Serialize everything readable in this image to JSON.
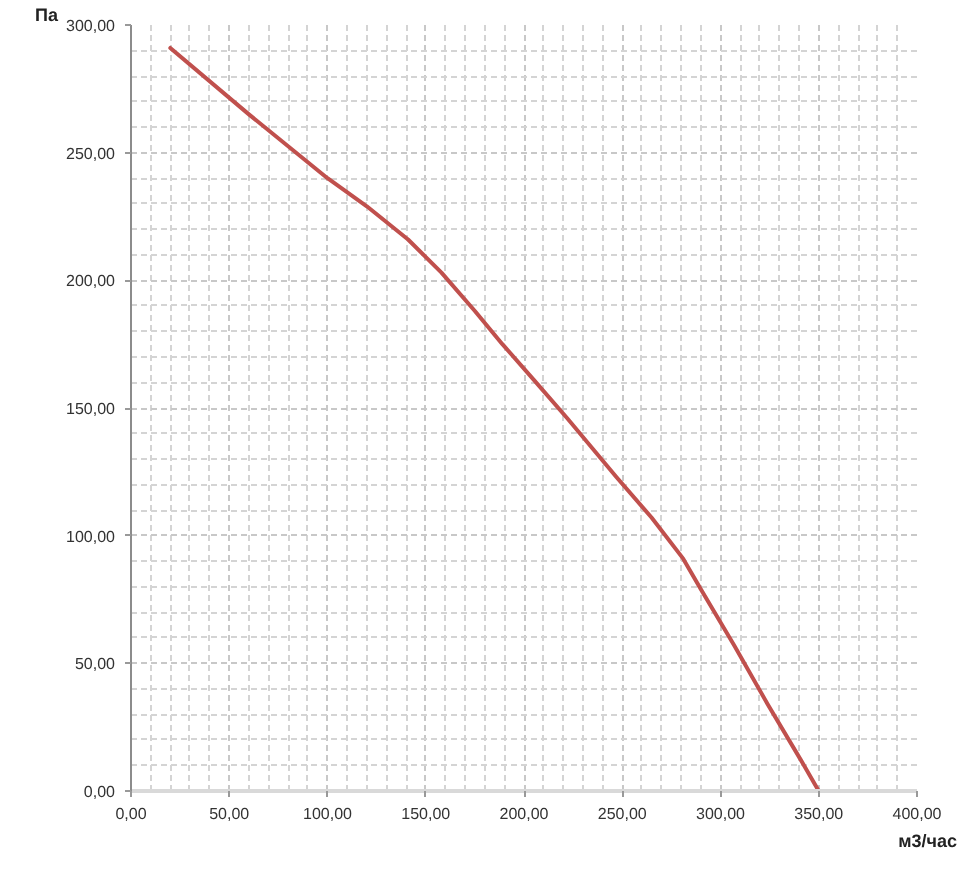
{
  "chart_data": {
    "type": "line",
    "xlabel": "м3/час",
    "ylabel": "Па",
    "x": [
      20,
      60,
      100,
      120,
      141,
      158,
      175,
      189,
      205,
      222,
      247,
      265,
      281,
      290,
      307,
      324,
      341,
      350
    ],
    "series": [
      {
        "color": "#c0504d",
        "values": [
          291,
          265,
          240,
          229,
          216,
          203,
          188,
          175,
          161,
          146,
          123,
          107,
          91,
          79,
          57,
          34,
          12,
          0
        ]
      }
    ],
    "xlim": [
      0,
      400
    ],
    "ylim": [
      0,
      300
    ],
    "xticks": [
      {
        "value": 0,
        "label": "0,00"
      },
      {
        "value": 10,
        "label": null
      },
      {
        "value": 20,
        "label": null
      },
      {
        "value": 30,
        "label": null
      },
      {
        "value": 40,
        "label": null
      },
      {
        "value": 50,
        "label": "50,00"
      },
      {
        "value": 60,
        "label": null
      },
      {
        "value": 70,
        "label": null
      },
      {
        "value": 80,
        "label": null
      },
      {
        "value": 90,
        "label": null
      },
      {
        "value": 100,
        "label": "100,00"
      },
      {
        "value": 110,
        "label": null
      },
      {
        "value": 120,
        "label": null
      },
      {
        "value": 130,
        "label": null
      },
      {
        "value": 140,
        "label": null
      },
      {
        "value": 150,
        "label": "150,00"
      },
      {
        "value": 160,
        "label": null
      },
      {
        "value": 170,
        "label": null
      },
      {
        "value": 180,
        "label": null
      },
      {
        "value": 190,
        "label": null
      },
      {
        "value": 200,
        "label": "200,00"
      },
      {
        "value": 210,
        "label": null
      },
      {
        "value": 220,
        "label": null
      },
      {
        "value": 230,
        "label": null
      },
      {
        "value": 240,
        "label": null
      },
      {
        "value": 250,
        "label": "250,00"
      },
      {
        "value": 260,
        "label": null
      },
      {
        "value": 270,
        "label": null
      },
      {
        "value": 280,
        "label": null
      },
      {
        "value": 290,
        "label": null
      },
      {
        "value": 300,
        "label": "300,00"
      },
      {
        "value": 310,
        "label": null
      },
      {
        "value": 320,
        "label": null
      },
      {
        "value": 330,
        "label": null
      },
      {
        "value": 340,
        "label": null
      },
      {
        "value": 350,
        "label": "350,00"
      },
      {
        "value": 360,
        "label": null
      },
      {
        "value": 370,
        "label": null
      },
      {
        "value": 380,
        "label": null
      },
      {
        "value": 390,
        "label": null
      },
      {
        "value": 400,
        "label": "400,00"
      }
    ],
    "yticks": [
      {
        "value": 0,
        "label": "0,00"
      },
      {
        "value": 10,
        "label": null
      },
      {
        "value": 20,
        "label": null
      },
      {
        "value": 30,
        "label": null
      },
      {
        "value": 40,
        "label": null
      },
      {
        "value": 50,
        "label": "50,00"
      },
      {
        "value": 60,
        "label": null
      },
      {
        "value": 70,
        "label": null
      },
      {
        "value": 80,
        "label": null
      },
      {
        "value": 90,
        "label": null
      },
      {
        "value": 100,
        "label": "100,00"
      },
      {
        "value": 110,
        "label": null
      },
      {
        "value": 120,
        "label": null
      },
      {
        "value": 130,
        "label": null
      },
      {
        "value": 140,
        "label": null
      },
      {
        "value": 150,
        "label": "150,00"
      },
      {
        "value": 160,
        "label": null
      },
      {
        "value": 170,
        "label": null
      },
      {
        "value": 180,
        "label": null
      },
      {
        "value": 190,
        "label": null
      },
      {
        "value": 200,
        "label": "200,00"
      },
      {
        "value": 210,
        "label": null
      },
      {
        "value": 220,
        "label": null
      },
      {
        "value": 230,
        "label": null
      },
      {
        "value": 240,
        "label": null
      },
      {
        "value": 250,
        "label": "250,00"
      },
      {
        "value": 260,
        "label": null
      },
      {
        "value": 270,
        "label": null
      },
      {
        "value": 280,
        "label": null
      },
      {
        "value": 290,
        "label": null
      },
      {
        "value": 300,
        "label": "300,00"
      }
    ],
    "grid": true,
    "line_style": "solid"
  }
}
